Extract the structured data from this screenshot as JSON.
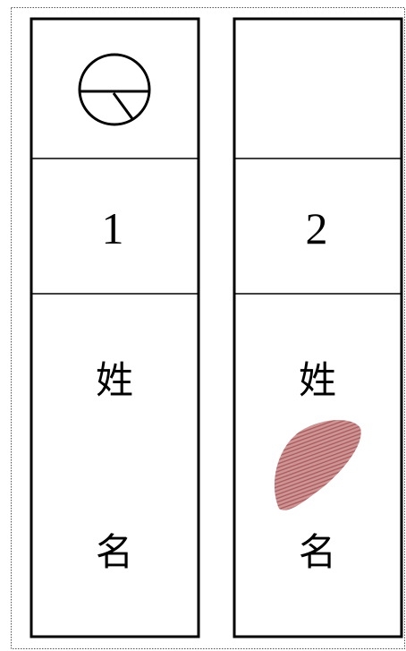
{
  "columns": [
    {
      "number": "1",
      "surname_label": "姓",
      "given_name_label": "名"
    },
    {
      "number": "2",
      "surname_label": "姓",
      "given_name_label": "名"
    }
  ]
}
